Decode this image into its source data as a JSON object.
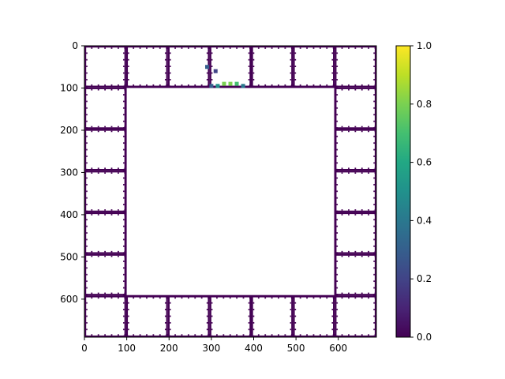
{
  "chart_data": {
    "type": "heatmap",
    "title": "",
    "xlabel": "",
    "ylabel": "",
    "xlim": [
      0,
      690
    ],
    "ylim": [
      690,
      0
    ],
    "xticks": [
      0,
      100,
      200,
      300,
      400,
      500,
      600
    ],
    "yticks": [
      0,
      100,
      200,
      300,
      400,
      500,
      600
    ],
    "colormap": "viridis",
    "colorbar": {
      "range": [
        0,
        1
      ],
      "ticks": [
        "0.0",
        "0.2",
        "0.4",
        "0.6",
        "0.8",
        "1.0"
      ]
    },
    "structure": {
      "grid_cells": 7,
      "cell_size": 98.6,
      "empty_center_cells": [
        1,
        5
      ],
      "background_value": 0.0
    },
    "highlights": [
      {
        "x": 330,
        "y": 90,
        "value": 0.75
      },
      {
        "x": 345,
        "y": 90,
        "value": 0.8
      },
      {
        "x": 360,
        "y": 90,
        "value": 0.65
      },
      {
        "x": 315,
        "y": 95,
        "value": 0.45
      },
      {
        "x": 300,
        "y": 95,
        "value": 0.3
      },
      {
        "x": 375,
        "y": 95,
        "value": 0.35
      },
      {
        "x": 290,
        "y": 50,
        "value": 0.25
      },
      {
        "x": 310,
        "y": 60,
        "value": 0.2
      }
    ]
  },
  "colors": {
    "viridis_dark": "#440154",
    "viridis_mid": "#21918c",
    "viridis_light": "#fde725"
  }
}
